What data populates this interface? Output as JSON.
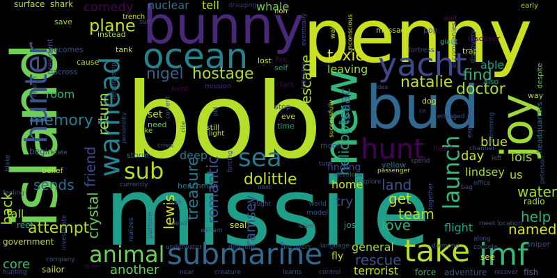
{
  "words": [
    {
      "text": "bob",
      "color": "#b5de2b"
    },
    {
      "text": "missile",
      "color": "#1f9e89"
    },
    {
      "text": "penny",
      "color": "#c8e020"
    },
    {
      "text": "island",
      "color": "#6ece58"
    },
    {
      "text": "bunny",
      "color": "#482878"
    },
    {
      "text": "bud",
      "color": "#31688e"
    },
    {
      "text": "new",
      "color": "#35b779"
    },
    {
      "text": "joy",
      "color": "#a0da39"
    },
    {
      "text": "ocean",
      "color": "#26828e"
    },
    {
      "text": "yacht",
      "color": "#3e4989"
    },
    {
      "text": "hunter",
      "color": "#3b528b"
    },
    {
      "text": "warhead",
      "color": "#26828e"
    },
    {
      "text": "submarine",
      "color": "#31688e"
    },
    {
      "text": "take",
      "color": "#b5de2b"
    },
    {
      "text": "imf",
      "color": "#35b779"
    },
    {
      "text": "hunt",
      "color": "#440154"
    },
    {
      "text": "sea",
      "color": "#2a788e"
    },
    {
      "text": "sub",
      "color": "#b5de2b"
    },
    {
      "text": "animal",
      "color": "#6ece58"
    },
    {
      "text": "launch",
      "color": "#35b779"
    },
    {
      "text": "toxic",
      "color": "#d8e219"
    },
    {
      "text": "natalie",
      "color": "#c2df23"
    },
    {
      "text": "doctor",
      "color": "#a5db36"
    },
    {
      "text": "find",
      "color": "#2db27d"
    },
    {
      "text": "nigel",
      "color": "#34618d"
    },
    {
      "text": "hostage",
      "color": "#addc30"
    },
    {
      "text": "plane",
      "color": "#c8e020"
    },
    {
      "text": "memory",
      "color": "#287d8e"
    },
    {
      "text": "attempt",
      "color": "#b5de2b"
    },
    {
      "text": "treasure",
      "color": "#2a788e"
    },
    {
      "text": "romantic",
      "color": "#3b528b"
    },
    {
      "text": "dolittle",
      "color": "#c8e020"
    },
    {
      "text": "helicopter",
      "color": "#1f9e89"
    },
    {
      "text": "lewis",
      "color": "#d8e219"
    },
    {
      "text": "ramsey",
      "color": "#3b528b"
    },
    {
      "text": "isaac",
      "color": "#2c728e"
    },
    {
      "text": "water",
      "color": "#a0da39"
    },
    {
      "text": "help",
      "color": "#2db27d"
    },
    {
      "text": "team",
      "color": "#b5de2b"
    },
    {
      "text": "rescue",
      "color": "#3b528b"
    },
    {
      "text": "land",
      "color": "#3b528b"
    },
    {
      "text": "get",
      "color": "#d0e11c"
    },
    {
      "text": "love",
      "color": "#2db27d"
    },
    {
      "text": "named",
      "color": "#d8e219"
    },
    {
      "text": "sends",
      "color": "#2c728e"
    },
    {
      "text": "back",
      "color": "#addc30"
    },
    {
      "text": "crystal",
      "color": "#6ece58"
    },
    {
      "text": "friend",
      "color": "#3e4989"
    },
    {
      "text": "return",
      "color": "#addc30"
    },
    {
      "text": "escape",
      "color": "#b5de2b"
    },
    {
      "text": "day",
      "color": "#c8e020"
    },
    {
      "text": "lois",
      "color": "#a0da39"
    },
    {
      "text": "blue",
      "color": "#bddf26"
    },
    {
      "text": "comedy",
      "color": "#440154"
    },
    {
      "text": "nuclear",
      "color": "#2c728e"
    },
    {
      "text": "tell",
      "color": "#bddf26"
    },
    {
      "text": "whale",
      "color": "#6ece58"
    },
    {
      "text": "core",
      "color": "#35b779"
    },
    {
      "text": "another",
      "color": "#6ece58"
    },
    {
      "text": "general",
      "color": "#a0da39"
    },
    {
      "text": "terrorist",
      "color": "#bddf26"
    },
    {
      "text": "home",
      "color": "#d8e219"
    },
    {
      "text": "try",
      "color": "#3e4989"
    },
    {
      "text": "lindsey",
      "color": "#a0da39"
    },
    {
      "text": "us",
      "color": "#bddf26"
    },
    {
      "text": "fall",
      "color": "#a0da39"
    },
    {
      "text": "room",
      "color": "#35b779"
    },
    {
      "text": "deep",
      "color": "#2a788e"
    },
    {
      "text": "set",
      "color": "#c2df23"
    },
    {
      "text": "finding",
      "color": "#3e4989"
    },
    {
      "text": "leaving",
      "color": "#a0da39"
    },
    {
      "text": "able",
      "color": "#1f9e89"
    },
    {
      "text": "flight",
      "color": "#1f9e89"
    },
    {
      "text": "surface",
      "color": "#b5de2b"
    },
    {
      "text": "shark",
      "color": "#b5de2b"
    },
    {
      "text": "sailor",
      "color": "#b5de2b"
    },
    {
      "text": "government",
      "color": "#b5de2b"
    },
    {
      "text": "radio",
      "color": "#addc30"
    },
    {
      "text": "fish",
      "color": "#2c728e"
    },
    {
      "text": "force",
      "color": "#2db27d"
    },
    {
      "text": "adventure",
      "color": "#3b528b"
    },
    {
      "text": "see",
      "color": "#d8e219"
    },
    {
      "text": "fly",
      "color": "#c8e020"
    },
    {
      "text": "josh",
      "color": "#1f9e89"
    },
    {
      "text": "seal",
      "color": "#d8e219"
    },
    {
      "text": "president",
      "color": "#3e4989"
    },
    {
      "text": "begin",
      "color": "#3b528b"
    },
    {
      "text": "sniper",
      "color": "#3e4989"
    },
    {
      "text": "moon",
      "color": "#3e4989"
    },
    {
      "text": "yellow",
      "color": "#2c728e"
    },
    {
      "text": "headquarters",
      "color": "#2c728e"
    },
    {
      "text": "reef",
      "color": "#1f9e89"
    },
    {
      "text": "belief",
      "color": "#c8e020"
    },
    {
      "text": "henchman",
      "color": "#2c728e"
    },
    {
      "text": "storm",
      "color": "#2c728e"
    },
    {
      "text": "message",
      "color": "#c8e020"
    },
    {
      "text": "pop",
      "color": "#3e4989"
    },
    {
      "text": "trap",
      "color": "#c8e020"
    },
    {
      "text": "stop",
      "color": "#3b528b"
    },
    {
      "text": "eve",
      "color": "#c8e020"
    },
    {
      "text": "time",
      "color": "#1f9e89"
    },
    {
      "text": "still",
      "color": "#c8e020"
    },
    {
      "text": "light",
      "color": "#c8e020"
    },
    {
      "text": "need",
      "color": "#6ece58"
    },
    {
      "text": "like",
      "color": "#addc30"
    },
    {
      "text": "head",
      "color": "#440154"
    },
    {
      "text": "also",
      "color": "#1f9e89"
    },
    {
      "text": "dog",
      "color": "#c8e020"
    },
    {
      "text": "clark",
      "color": "#440154"
    },
    {
      "text": "kent",
      "color": "#440154"
    },
    {
      "text": "mission",
      "color": "#482878"
    },
    {
      "text": "lost",
      "color": "#c8e020"
    },
    {
      "text": "fire",
      "color": "#440154"
    },
    {
      "text": "self",
      "color": "#1f9e89"
    },
    {
      "text": "tank",
      "color": "#c8e020"
    },
    {
      "text": "cause",
      "color": "#b5de2b"
    },
    {
      "text": "across",
      "color": "#3b528b"
    },
    {
      "text": "becomes",
      "color": "#3e4989"
    },
    {
      "text": "save",
      "color": "#a0da39"
    },
    {
      "text": "instead",
      "color": "#addc30"
    },
    {
      "text": "trench",
      "color": "#d8e219"
    },
    {
      "text": "dragging",
      "color": "#482878"
    },
    {
      "text": "non",
      "color": "#d8e219"
    },
    {
      "text": "wake",
      "color": "#b5de2b"
    },
    {
      "text": "eventually",
      "color": "#3e4989"
    },
    {
      "text": "unconscious",
      "color": "#d8e219"
    },
    {
      "text": "discover",
      "color": "#440154"
    },
    {
      "text": "wall",
      "color": "#440154"
    },
    {
      "text": "giant",
      "color": "#35b779"
    },
    {
      "text": "fortress",
      "color": "#3e4989"
    },
    {
      "text": "accompanies",
      "color": "#3e4989"
    },
    {
      "text": "discovery",
      "color": "#3e4989"
    },
    {
      "text": "early",
      "color": "#addc30"
    },
    {
      "text": "despite",
      "color": "#6ece58"
    },
    {
      "text": "way",
      "color": "#addc30"
    },
    {
      "text": "peterson",
      "color": "#3b528b"
    },
    {
      "text": "swimming",
      "color": "#3b528b"
    },
    {
      "text": "expedition",
      "color": "#3b528b"
    },
    {
      "text": "engaged",
      "color": "#3b528b"
    },
    {
      "text": "spend",
      "color": "#3b528b"
    },
    {
      "text": "channel",
      "color": "#3b528b"
    },
    {
      "text": "left",
      "color": "#3b528b"
    },
    {
      "text": "bag",
      "color": "#3b528b"
    },
    {
      "text": "office",
      "color": "#3b528b"
    },
    {
      "text": "passenger",
      "color": "#c8e020"
    },
    {
      "text": "develops",
      "color": "#3b528b"
    },
    {
      "text": "explore",
      "color": "#3b528b"
    },
    {
      "text": "next",
      "color": "#3b528b"
    },
    {
      "text": "caught",
      "color": "#3b528b"
    },
    {
      "text": "world",
      "color": "#3b528b"
    },
    {
      "text": "model",
      "color": "#3b528b"
    },
    {
      "text": "learn",
      "color": "#3b528b"
    },
    {
      "text": "together",
      "color": "#3b528b"
    },
    {
      "text": "meet",
      "color": "#3b528b"
    },
    {
      "text": "location",
      "color": "#3b528b"
    },
    {
      "text": "along",
      "color": "#3b528b"
    },
    {
      "text": "diamond",
      "color": "#3b528b"
    },
    {
      "text": "console",
      "color": "#3b528b"
    },
    {
      "text": "language",
      "color": "#3b528b"
    },
    {
      "text": "learns",
      "color": "#3b528b"
    },
    {
      "text": "control",
      "color": "#3b528b"
    },
    {
      "text": "recover",
      "color": "#3b528b"
    },
    {
      "text": "creature",
      "color": "#3b528b"
    },
    {
      "text": "near",
      "color": "#3b528b"
    },
    {
      "text": "different",
      "color": "#3b528b"
    },
    {
      "text": "discovers",
      "color": "#3b528b"
    },
    {
      "text": "underwater",
      "color": "#3b528b"
    },
    {
      "text": "william",
      "color": "#3b528b"
    },
    {
      "text": "platform",
      "color": "#3b528b"
    },
    {
      "text": "dead",
      "color": "#3b528b"
    },
    {
      "text": "wait",
      "color": "#3b528b"
    },
    {
      "text": "realizes",
      "color": "#3b528b"
    },
    {
      "text": "currently",
      "color": "#3b528b"
    },
    {
      "text": "investigate",
      "color": "#3b528b"
    },
    {
      "text": "company",
      "color": "#3b528b"
    },
    {
      "text": "hunting",
      "color": "#3b528b"
    },
    {
      "text": "miss",
      "color": "#440154"
    },
    {
      "text": "feeling",
      "color": "#3b528b"
    },
    {
      "text": "blake",
      "color": "#3b528b"
    },
    {
      "text": "state",
      "color": "#3b528b"
    },
    {
      "text": "search",
      "color": "#3b528b"
    },
    {
      "text": "crisis",
      "color": "#3b528b"
    },
    {
      "text": "personality",
      "color": "#3b528b"
    },
    {
      "text": "relationship",
      "color": "#3b528b"
    },
    {
      "text": "suit",
      "color": "#3b528b"
    },
    {
      "text": "current",
      "color": "#3b528b"
    },
    {
      "text": "forcing",
      "color": "#3b528b"
    },
    {
      "text": "old",
      "color": "#3b528b"
    },
    {
      "text": "cite",
      "color": "#3b528b"
    },
    {
      "text": "successfully",
      "color": "#c8e020"
    },
    {
      "text": "following",
      "color": "#3b528b"
    },
    {
      "text": "idea",
      "color": "#3b528b"
    },
    {
      "text": "co",
      "color": "#3b528b"
    },
    {
      "text": "turn",
      "color": "#3b528b"
    }
  ]
}
